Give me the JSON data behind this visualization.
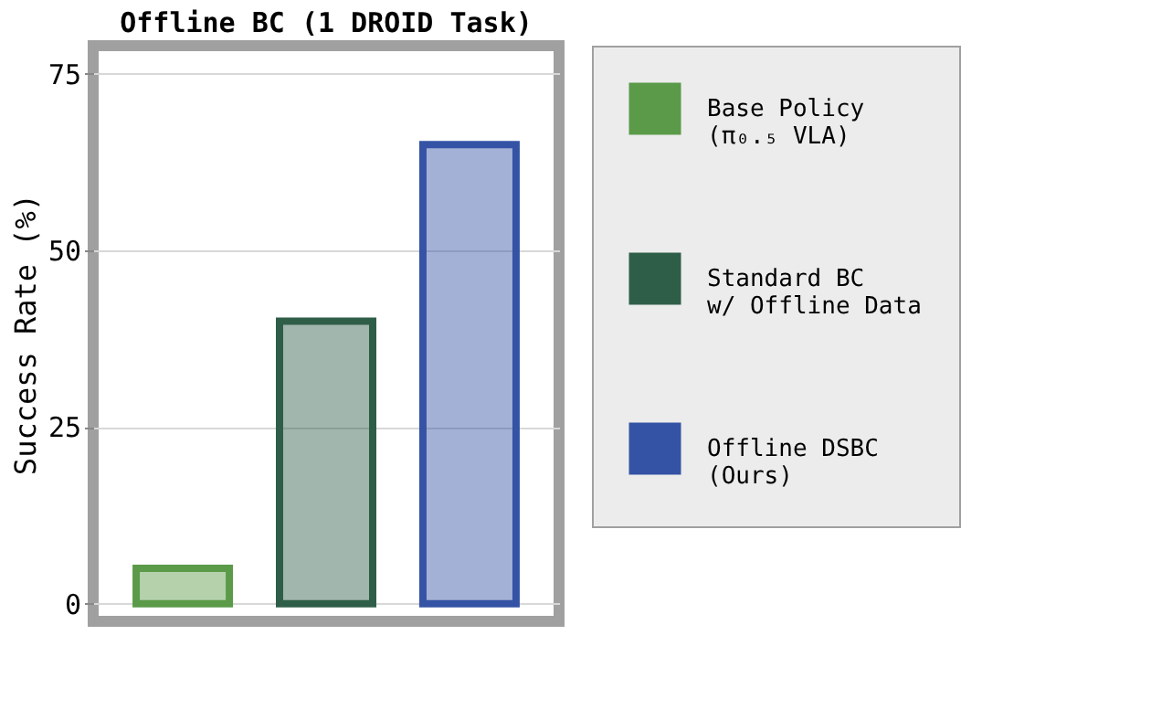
{
  "chart_data": {
    "type": "bar",
    "title": "Offline BC (1 DROID Task)",
    "ylabel": "Success Rate (%)",
    "categories": [
      null,
      null,
      null
    ],
    "series": [
      {
        "name": "Base Policy\n(π₀.₅ VLA)",
        "color": "#5a9a48",
        "values": [
          5,
          null,
          null
        ]
      },
      {
        "name": "Standard BC\nw/ Offline Data",
        "color": "#2f5e48",
        "values": [
          null,
          40,
          null
        ]
      },
      {
        "name": "Offline DSBC\n(Ours)",
        "color": "#3553a5",
        "values": [
          null,
          null,
          65
        ]
      }
    ],
    "ylim": [
      -2.5,
      79
    ],
    "yticks": [
      0,
      25,
      50,
      75
    ],
    "grid": "y",
    "legend": "right"
  }
}
